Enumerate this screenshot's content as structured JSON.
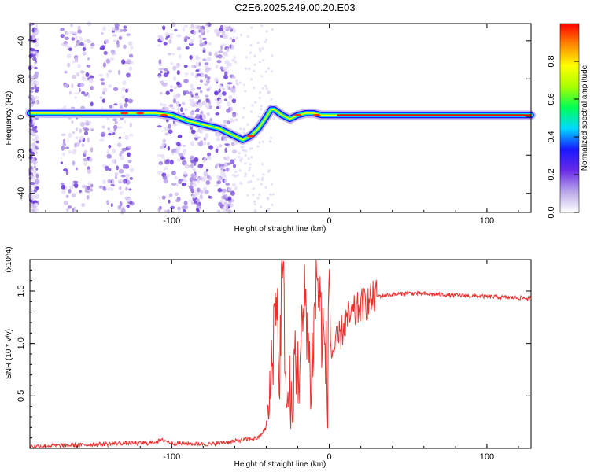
{
  "title": "C2E6.2025.249.00.20.E03",
  "chart_data": [
    {
      "type": "heatmap",
      "xlabel": "Height of straight line (km)",
      "ylabel": "Frequency (Hz)",
      "xlim": [
        -190,
        128
      ],
      "ylim": [
        -50,
        49
      ],
      "xticks": [
        -100,
        0,
        100
      ],
      "yticks": [
        -40,
        -20,
        0,
        20,
        40
      ],
      "colorbar": {
        "label": "Normalized spectral amplitude",
        "range": [
          0,
          1
        ],
        "ticks": [
          "0.0",
          "0.2",
          "0.4",
          "0.6",
          "0.8"
        ],
        "colors": [
          "#ffffff",
          "#b8a6e8",
          "#6a2be6",
          "#1818ff",
          "#00d8ff",
          "#00ff55",
          "#aaff00",
          "#ffff00",
          "#ff8800",
          "#ff0000"
        ]
      },
      "ridge": {
        "x": [
          -190,
          -170,
          -150,
          -130,
          -110,
          -100,
          -90,
          -80,
          -70,
          -60,
          -55,
          -50,
          -45,
          -40,
          -37,
          -35,
          -30,
          -25,
          -20,
          -15,
          -10,
          -5,
          0,
          20,
          60,
          128
        ],
        "y": [
          2,
          2,
          2,
          2,
          2,
          1,
          -2,
          -4,
          -6,
          -10,
          -12,
          -10,
          -6,
          0,
          4,
          4,
          1,
          -1,
          1,
          2,
          2,
          1,
          1,
          1,
          1,
          1
        ]
      }
    },
    {
      "type": "line",
      "xlabel": "Height of straight line (km)",
      "ylabel": "SNR (10 * v/v)",
      "y_multiplier": "(x10^4)",
      "xlim": [
        -190,
        128
      ],
      "ylim": [
        0,
        1.8
      ],
      "xticks": [
        -100,
        0,
        100
      ],
      "yticks": [
        0.5,
        1.0,
        1.5
      ],
      "color": "#e8302c",
      "series": [
        {
          "x": [
            -190,
            -160,
            -130,
            -115,
            -105,
            -100,
            -75,
            -65,
            -45,
            -40,
            -38,
            -37,
            -35,
            -33,
            -32,
            -30,
            -28,
            -27,
            -25,
            -23,
            -22,
            -20,
            -18,
            -15,
            -12,
            -10,
            -8,
            -5,
            -2,
            -1,
            0,
            1,
            5,
            10,
            20,
            30,
            50,
            80,
            128
          ],
          "y": [
            0.02,
            0.03,
            0.05,
            0.05,
            0.08,
            0.05,
            0.04,
            0.06,
            0.1,
            0.2,
            0.4,
            0.7,
            1.2,
            1.6,
            0.4,
            1.8,
            1.0,
            0.3,
            0.6,
            0.15,
            1.0,
            0.7,
            0.9,
            1.5,
            0.6,
            1.05,
            1.7,
            1.2,
            0.8,
            0.5,
            1.75,
            0.9,
            1.0,
            1.2,
            1.35,
            1.45,
            1.48,
            1.46,
            1.43
          ]
        }
      ]
    }
  ]
}
